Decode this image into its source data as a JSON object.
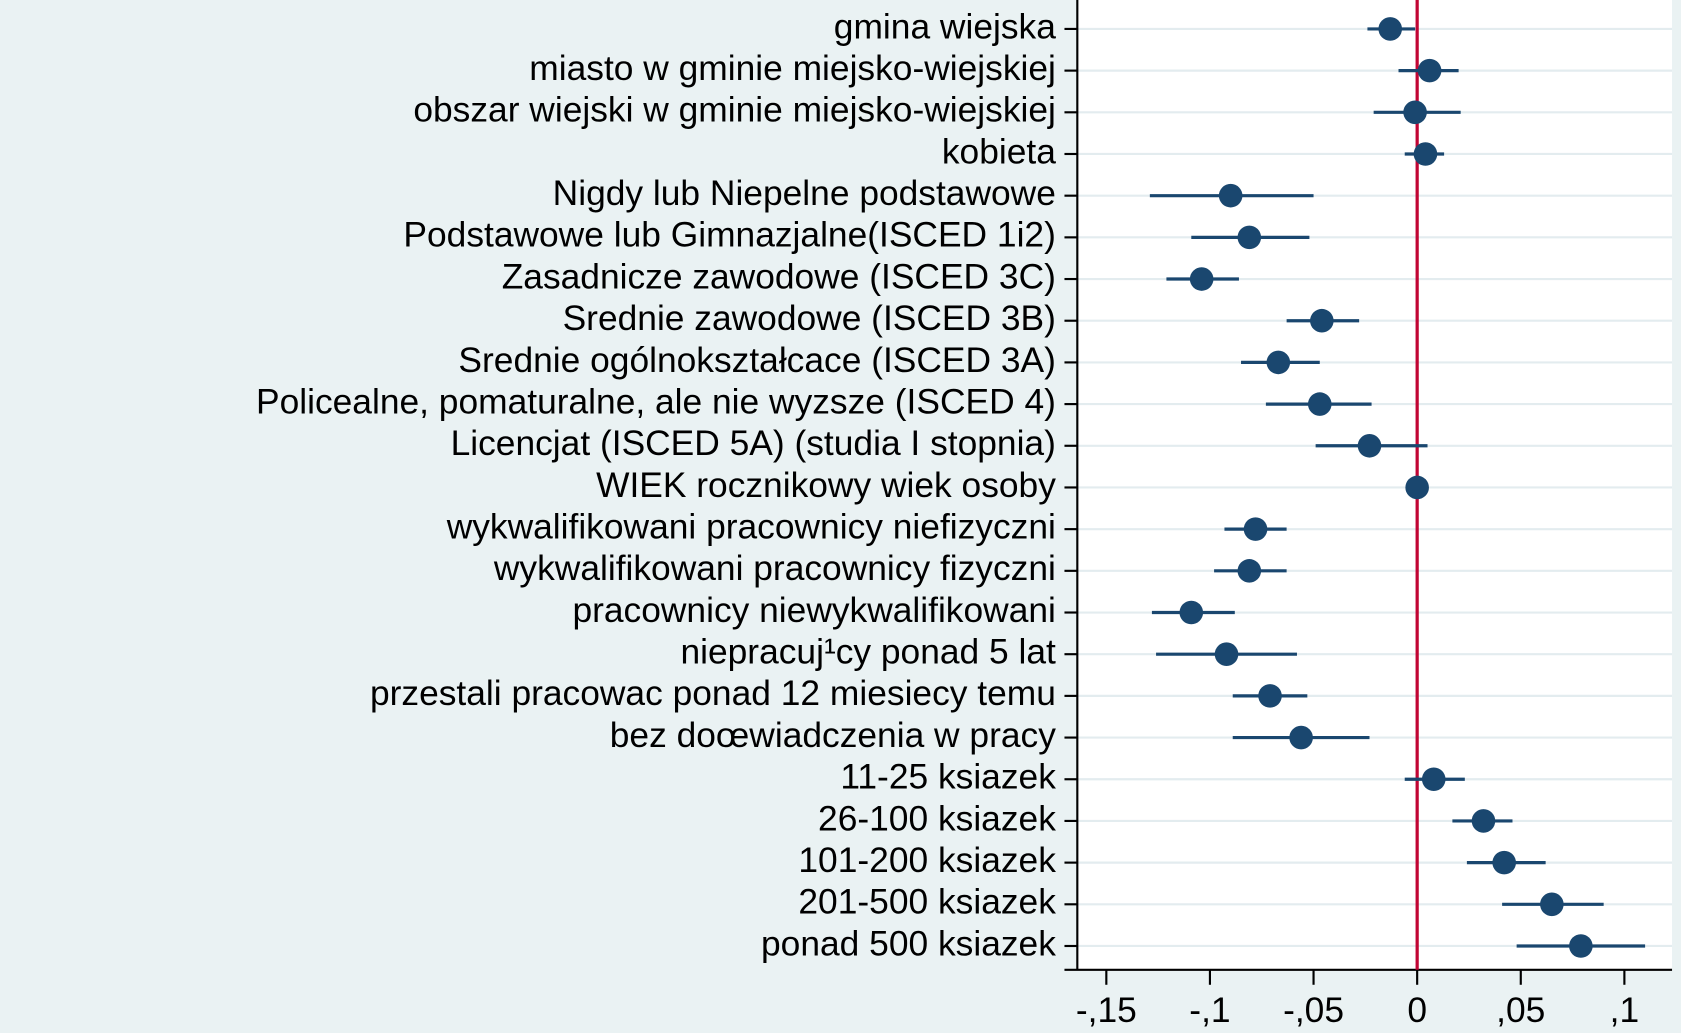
{
  "chart_data": {
    "type": "coefplot",
    "categories": [
      "gmina wiejska",
      "miasto w gminie miejsko-wiejskiej",
      "obszar wiejski w gminie miejsko-wiejskiej",
      "kobieta",
      "Nigdy lub Niepelne podstawowe",
      "Podstawowe lub Gimnazjalne(ISCED 1i2)",
      "Zasadnicze zawodowe (ISCED 3C)",
      "Srednie zawodowe (ISCED 3B)",
      "Srednie ogólnokształcace (ISCED 3A)",
      "Policealne, pomaturalne, ale nie wyzsze (ISCED 4)",
      "Licencjat (ISCED 5A) (studia I stopnia)",
      "WIEK rocznikowy wiek osoby",
      "wykwalifikowani pracownicy niefizyczni",
      "wykwalifikowani pracownicy fizyczni",
      "pracownicy niewykwalifikowani",
      "niepracuj¹cy ponad 5 lat",
      "przestali pracowac ponad 12 miesiecy temu",
      "bez doœwiadczenia w pracy",
      "11-25 ksiazek",
      "26-100 ksiazek",
      "101-200 ksiazek",
      "201-500 ksiazek",
      "ponad 500 ksiazek"
    ],
    "series": [
      {
        "color": "#1a476f",
        "values": [
          -0.013,
          0.006,
          -0.001,
          0.004,
          -0.09,
          -0.081,
          -0.104,
          -0.046,
          -0.067,
          -0.047,
          -0.023,
          0,
          -0.078,
          -0.081,
          -0.109,
          -0.092,
          -0.071,
          -0.056,
          0.008,
          0.032,
          0.042,
          0.065,
          0.079
        ],
        "ci_low": [
          -0.024,
          -0.009,
          -0.021,
          -0.006,
          -0.129,
          -0.109,
          -0.121,
          -0.063,
          -0.085,
          -0.073,
          -0.049,
          -0.001,
          -0.093,
          -0.098,
          -0.128,
          -0.126,
          -0.089,
          -0.089,
          -0.006,
          0.017,
          0.024,
          0.041,
          0.048
        ],
        "ci_high": [
          -0.001,
          0.02,
          0.021,
          0.013,
          -0.05,
          -0.052,
          -0.086,
          -0.028,
          -0.047,
          -0.022,
          0.005,
          0.001,
          -0.063,
          -0.063,
          -0.088,
          -0.058,
          -0.053,
          -0.023,
          0.023,
          0.046,
          0.062,
          0.09,
          0.11
        ]
      }
    ],
    "xlim": [
      -0.164,
      0.123
    ],
    "xticks": [
      {
        "value": -0.15,
        "label": "-,15"
      },
      {
        "value": -0.1,
        "label": "-,1"
      },
      {
        "value": -0.05,
        "label": "-,05"
      },
      0,
      {
        "value": 0.05,
        "label": ",05"
      },
      {
        "value": 0.1,
        "label": ",1"
      }
    ],
    "xline": 0,
    "xline_color": "#c10534",
    "grid": true
  }
}
